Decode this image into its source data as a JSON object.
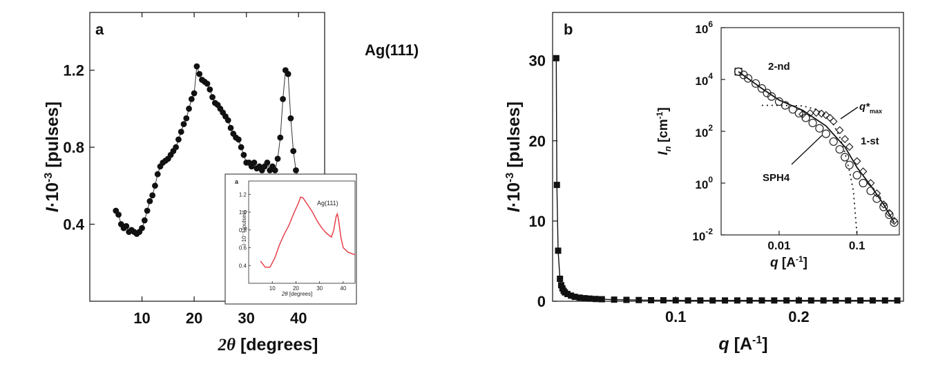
{
  "chart_data": [
    {
      "panel": "a",
      "type": "scatter",
      "xlabel_prefix": "2θ",
      "xlabel_rest": " [degrees]",
      "ylabel_var": "I",
      "ylabel_rest": "·10",
      "ylabel_exp": "-3",
      "ylabel_unit": " [pulses]",
      "xlim": [
        0,
        45
      ],
      "ylim": [
        0,
        1.5
      ],
      "xticks": [
        "10",
        "20",
        "30",
        "40"
      ],
      "yticks": [
        "0.4",
        "0.8",
        "1.2"
      ],
      "annotation": "Ag(111)",
      "series": [
        {
          "x": [
            5,
            5.5,
            6,
            6.5,
            7,
            7.5,
            8,
            8.5,
            9,
            9.5,
            10,
            10.5,
            11,
            11.5,
            12,
            12.5,
            13,
            13.5,
            14,
            14.5,
            15,
            15.5,
            16,
            16.5,
            17,
            17.5,
            18,
            18.5,
            19,
            19.5,
            20,
            20.5,
            21,
            21.5,
            22,
            22.5,
            23,
            23.5,
            24,
            24.5,
            25,
            25.5,
            26,
            26.5,
            27,
            27.5,
            28,
            28.5,
            29,
            29.5,
            30,
            30.5,
            31,
            31.5,
            32,
            32.5,
            33,
            33.5,
            34,
            34.5,
            35,
            35.5,
            36,
            36.5,
            37,
            37.5,
            38,
            38.5,
            39,
            39.5,
            40,
            40.5,
            41,
            41.5,
            42,
            42.5,
            43,
            43.5,
            44,
            44.5,
            45
          ],
          "y": [
            0.47,
            0.45,
            0.4,
            0.38,
            0.39,
            0.36,
            0.37,
            0.36,
            0.35,
            0.36,
            0.38,
            0.42,
            0.47,
            0.52,
            0.55,
            0.6,
            0.66,
            0.7,
            0.72,
            0.73,
            0.74,
            0.76,
            0.78,
            0.8,
            0.84,
            0.88,
            0.92,
            0.95,
            1.0,
            1.05,
            1.08,
            1.22,
            1.18,
            1.15,
            1.14,
            1.13,
            1.1,
            1.06,
            1.03,
            1.02,
            1.0,
            0.98,
            0.96,
            0.94,
            0.9,
            0.87,
            0.85,
            0.84,
            0.8,
            0.76,
            0.72,
            0.72,
            0.7,
            0.72,
            0.69,
            0.7,
            0.68,
            0.7,
            0.72,
            0.68,
            0.7,
            0.68,
            0.74,
            0.85,
            1.05,
            1.2,
            1.18,
            0.95,
            0.78,
            0.68,
            0.64,
            0.62,
            0.6,
            0.58,
            0.57,
            0.56,
            0.56,
            0.55,
            0.53,
            0.5,
            0.47
          ]
        }
      ]
    },
    {
      "panel": "a-inset",
      "type": "line",
      "xlabel_prefix": "2θ",
      "xlabel_rest": " [degrees]",
      "ylabel": "I·10⁻³ [pulses]",
      "xlim": [
        0,
        45
      ],
      "ylim": [
        0.2,
        1.35
      ],
      "xticks": [
        "10",
        "20",
        "30",
        "40"
      ],
      "yticks": [
        "0.4",
        "0.6",
        "0.8",
        "1.0",
        "1.2"
      ],
      "annotation": "Ag(111)",
      "line_color": "#e8404a",
      "series": [
        {
          "x": [
            5,
            7,
            9,
            11,
            13,
            15,
            17,
            19,
            21,
            22,
            23,
            25,
            27,
            29,
            31,
            33,
            35,
            36,
            37,
            37.5,
            38,
            39,
            40,
            42,
            45
          ],
          "y": [
            0.45,
            0.38,
            0.38,
            0.48,
            0.63,
            0.75,
            0.85,
            0.98,
            1.1,
            1.17,
            1.16,
            1.08,
            1.0,
            0.9,
            0.82,
            0.76,
            0.72,
            0.8,
            0.95,
            0.98,
            0.92,
            0.72,
            0.6,
            0.55,
            0.52
          ]
        }
      ]
    },
    {
      "panel": "b",
      "type": "scatter",
      "xlabel_var": "q",
      "xlabel_rest": " [A",
      "xlabel_exp": "-1",
      "xlabel_close": "]",
      "ylabel_var": "I",
      "ylabel_rest": "·10",
      "ylabel_exp": "-3",
      "ylabel_unit": " [pulses]",
      "xlim": [
        0,
        0.285
      ],
      "ylim": [
        0,
        36
      ],
      "xticks": [
        "0.1",
        "0.2"
      ],
      "yticks": [
        "0",
        "10",
        "20",
        "30"
      ],
      "series": [
        {
          "x": [
            0.003,
            0.0035,
            0.0045,
            0.006,
            0.007,
            0.008,
            0.009,
            0.01,
            0.012,
            0.015,
            0.018,
            0.022,
            0.026,
            0.03,
            0.035,
            0.04,
            0.05,
            0.06,
            0.07,
            0.08,
            0.09,
            0.1,
            0.11,
            0.12,
            0.13,
            0.14,
            0.15,
            0.16,
            0.17,
            0.18,
            0.19,
            0.2,
            0.21,
            0.22,
            0.23,
            0.24,
            0.25,
            0.26,
            0.27,
            0.28
          ],
          "y": [
            30.3,
            14.5,
            6.3,
            2.8,
            2.0,
            1.6,
            1.3,
            1.1,
            0.9,
            0.7,
            0.55,
            0.45,
            0.38,
            0.33,
            0.28,
            0.25,
            0.2,
            0.17,
            0.15,
            0.13,
            0.12,
            0.11,
            0.1,
            0.1,
            0.1,
            0.1,
            0.1,
            0.1,
            0.1,
            0.1,
            0.1,
            0.1,
            0.1,
            0.1,
            0.1,
            0.1,
            0.1,
            0.1,
            0.1,
            0.1
          ]
        }
      ]
    },
    {
      "panel": "b-inset",
      "type": "scatter",
      "log_x": true,
      "log_y": true,
      "xlabel_var": "q",
      "xlabel_rest": " [A",
      "xlabel_exp": "-1",
      "xlabel_close": "]",
      "ylabel_var": "I",
      "ylabel_sub": "n",
      "ylabel_rest": " [cm",
      "ylabel_exp": "-1",
      "ylabel_close": "]",
      "xlim": [
        0.0018,
        0.35
      ],
      "ylim": [
        0.01,
        1000000
      ],
      "xticks": [
        "0.01",
        "0.1"
      ],
      "xtick_values": [
        0.01,
        0.1
      ],
      "yticks_base": "10",
      "yticks_exp": [
        "-2",
        "0",
        "2",
        "4",
        "6"
      ],
      "ytick_values": [
        0.01,
        1,
        100,
        10000,
        1000000
      ],
      "annotations": [
        "2-nd",
        "q*",
        "max",
        "1-st",
        "SPH4"
      ],
      "series": [
        {
          "x": [
            0.003,
            0.0035,
            0.004,
            0.005,
            0.006,
            0.007,
            0.008,
            0.01,
            0.012,
            0.015,
            0.018,
            0.022,
            0.027,
            0.033,
            0.04,
            0.05,
            0.06,
            0.07,
            0.08,
            0.1,
            0.12,
            0.15,
            0.18,
            0.22,
            0.26,
            0.3
          ],
          "y": [
            20000,
            15000,
            11000,
            7000,
            4500,
            3000,
            2200,
            1400,
            1000,
            700,
            500,
            330,
            210,
            130,
            80,
            40,
            20,
            10,
            5,
            2,
            1,
            0.5,
            0.25,
            0.12,
            0.06,
            0.03
          ]
        },
        {
          "x": [
            0.02,
            0.025,
            0.03,
            0.035,
            0.04,
            0.045,
            0.05,
            0.06,
            0.07,
            0.08,
            0.1,
            0.12,
            0.15,
            0.18,
            0.22,
            0.26,
            0.3
          ],
          "y": [
            450,
            500,
            520,
            480,
            420,
            330,
            240,
            110,
            50,
            25,
            7,
            2.8,
            1.0,
            0.4,
            0.15,
            0.07,
            0.035
          ]
        }
      ],
      "lines": [
        {
          "style": "solid",
          "x": [
            0.003,
            0.006,
            0.01,
            0.02,
            0.04,
            0.07,
            0.1,
            0.15,
            0.22,
            0.3
          ],
          "y": [
            20000,
            4500,
            1600,
            650,
            160,
            25,
            4,
            0.8,
            0.15,
            0.03
          ]
        },
        {
          "style": "dotted",
          "x": [
            0.006,
            0.01,
            0.02,
            0.03,
            0.04,
            0.05,
            0.06,
            0.07,
            0.08,
            0.09,
            0.1
          ],
          "y": [
            1000,
            1000,
            950,
            700,
            400,
            180,
            60,
            15,
            3,
            0.5,
            0.01
          ]
        }
      ]
    }
  ]
}
